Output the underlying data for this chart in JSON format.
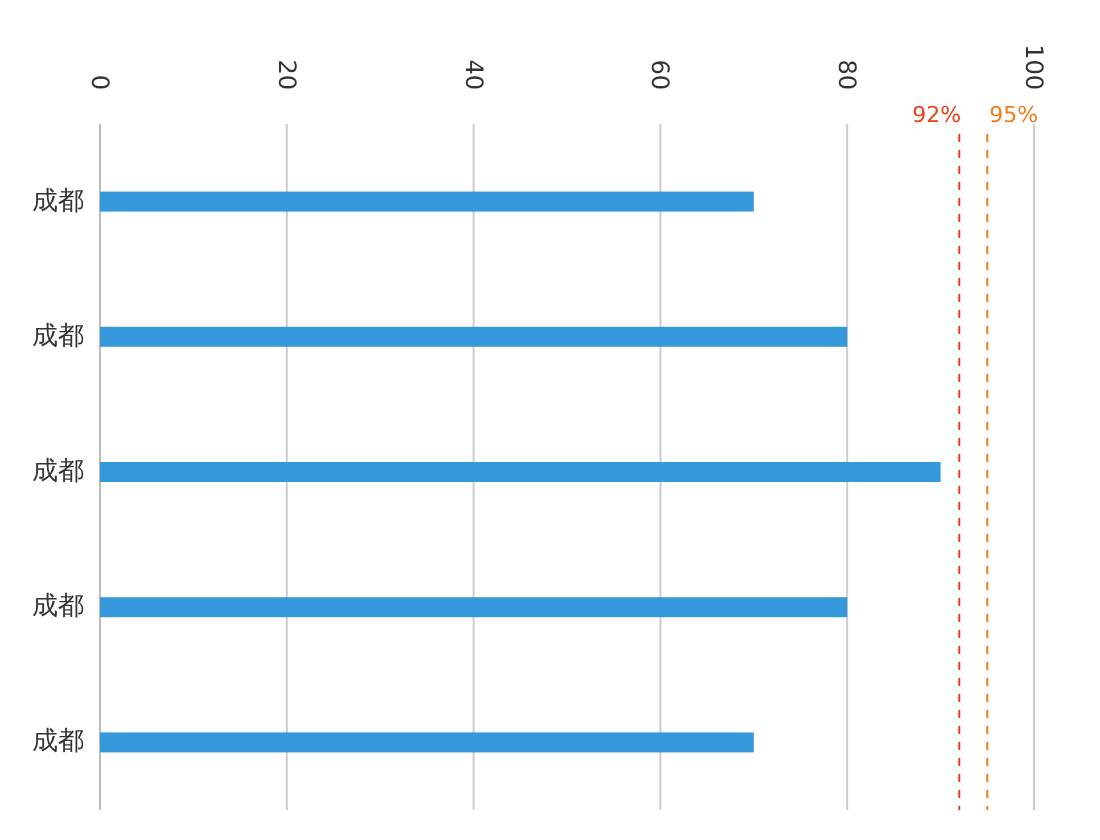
{
  "chart_data": {
    "type": "bar",
    "orientation": "horizontal",
    "categories": [
      "成都",
      "成都",
      "成都",
      "成都",
      "成都"
    ],
    "values": [
      70,
      80,
      90,
      80,
      70
    ],
    "color": "#3498db",
    "xlim": [
      0,
      100
    ],
    "xticks": [
      0,
      20,
      40,
      60,
      80,
      100
    ],
    "grid": "x",
    "ref_lines": [
      {
        "axis": "x",
        "value": 92,
        "label": "92%",
        "color": "#e8401c",
        "line_style": "dashed"
      },
      {
        "axis": "x",
        "value": 95,
        "label": "95%",
        "color": "#f07d1a",
        "line_style": "dashed"
      }
    ]
  }
}
